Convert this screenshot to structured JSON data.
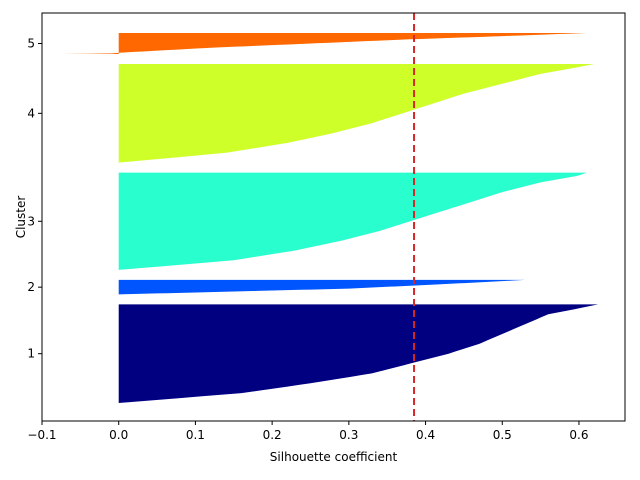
{
  "chart_data": {
    "type": "silhouette",
    "title": "",
    "xlabel": "Silhouette coefficient",
    "ylabel": "Cluster",
    "xlim": [
      -0.1,
      0.66
    ],
    "x_ticks": [
      -0.1,
      0.0,
      0.1,
      0.2,
      0.3,
      0.4,
      0.5,
      0.6
    ],
    "x_tick_labels": [
      "−0.1",
      "0.0",
      "0.1",
      "0.2",
      "0.3",
      "0.4",
      "0.5",
      "0.6"
    ],
    "y_tick_labels": [
      "1",
      "2",
      "3",
      "4",
      "5"
    ],
    "average_silhouette": 0.385,
    "average_line_color": "#d62728",
    "clusters": [
      {
        "label": "1",
        "color": "#000080",
        "size": 150,
        "max": 0.625,
        "min": 0.0,
        "profile": [
          [
            0.0,
            0.625
          ],
          [
            0.04,
            0.6
          ],
          [
            0.1,
            0.56
          ],
          [
            0.2,
            0.53
          ],
          [
            0.3,
            0.5
          ],
          [
            0.4,
            0.47
          ],
          [
            0.5,
            0.43
          ],
          [
            0.6,
            0.38
          ],
          [
            0.7,
            0.33
          ],
          [
            0.8,
            0.25
          ],
          [
            0.9,
            0.16
          ],
          [
            1.0,
            0.0
          ]
        ]
      },
      {
        "label": "2",
        "color": "#0055ff",
        "size": 22,
        "max": 0.53,
        "min": 0.0,
        "profile": [
          [
            0.0,
            0.53
          ],
          [
            0.3,
            0.42
          ],
          [
            0.6,
            0.3
          ],
          [
            1.0,
            0.0
          ]
        ]
      },
      {
        "label": "3",
        "color": "#29ffce",
        "size": 148,
        "max": 0.61,
        "min": 0.0,
        "profile": [
          [
            0.0,
            0.61
          ],
          [
            0.03,
            0.6
          ],
          [
            0.1,
            0.55
          ],
          [
            0.2,
            0.5
          ],
          [
            0.3,
            0.46
          ],
          [
            0.4,
            0.42
          ],
          [
            0.5,
            0.38
          ],
          [
            0.6,
            0.34
          ],
          [
            0.7,
            0.29
          ],
          [
            0.8,
            0.23
          ],
          [
            0.9,
            0.15
          ],
          [
            1.0,
            0.0
          ]
        ]
      },
      {
        "label": "4",
        "color": "#ceff29",
        "size": 150,
        "max": 0.62,
        "min": 0.0,
        "profile": [
          [
            0.0,
            0.62
          ],
          [
            0.03,
            0.6
          ],
          [
            0.1,
            0.55
          ],
          [
            0.2,
            0.5
          ],
          [
            0.3,
            0.45
          ],
          [
            0.4,
            0.41
          ],
          [
            0.5,
            0.37
          ],
          [
            0.6,
            0.33
          ],
          [
            0.7,
            0.28
          ],
          [
            0.8,
            0.22
          ],
          [
            0.9,
            0.14
          ],
          [
            1.0,
            0.0
          ]
        ]
      },
      {
        "label": "5",
        "color": "#ff6800",
        "size": 32,
        "max": 0.61,
        "min": -0.075,
        "profile": [
          [
            0.0,
            0.61
          ],
          [
            0.15,
            0.5
          ],
          [
            0.3,
            0.38
          ],
          [
            0.5,
            0.25
          ],
          [
            0.7,
            0.12
          ],
          [
            0.9,
            0.02
          ],
          [
            0.94,
            0.0
          ],
          [
            0.97,
            -0.01
          ],
          [
            1.0,
            -0.075
          ]
        ]
      }
    ]
  }
}
